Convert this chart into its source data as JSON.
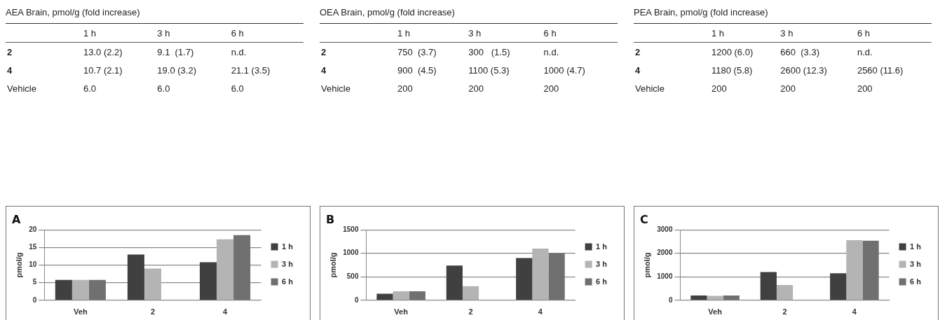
{
  "chart_data": [
    {
      "type": "other",
      "title": "AEA Brain, pmol/g (fold increase)",
      "categories": [
        "1 h",
        "3 h",
        "6 h"
      ],
      "y_categories": [
        "2",
        "4",
        "Vehicle"
      ],
      "annotations": [
        "13.0 (2.2)",
        "9.1  (1.7)",
        "n.d.",
        "10.7 (2.1)",
        "19.0 (3.2)",
        "21.1 (3.5)",
        "6.0",
        "6.0",
        "6.0"
      ]
    },
    {
      "type": "other",
      "title": "OEA Brain, pmol/g (fold increase)",
      "categories": [
        "1 h",
        "3 h",
        "6 h"
      ],
      "y_categories": [
        "2",
        "4",
        "Vehicle"
      ],
      "annotations": [
        "750  (3.7)",
        "300   (1.5)",
        "n.d.",
        "900  (4.5)",
        "1100 (5.3)",
        "1000 (4.7)",
        "200",
        "200",
        "200"
      ]
    },
    {
      "type": "other",
      "title": "PEA Brain, pmol/g (fold increase)",
      "categories": [
        "1 h",
        "3 h",
        "6 h"
      ],
      "y_categories": [
        "2",
        "4",
        "Vehicle"
      ],
      "annotations": [
        "1200 (6.0)",
        "660  (3.3)",
        "n.d.",
        "1180 (5.8)",
        "2600 (12.3)",
        "2560 (11.6)",
        "200",
        "200",
        "200"
      ]
    },
    {
      "type": "bar",
      "title": "A",
      "ylabel": "pmol/g",
      "categories": [
        "Veh",
        "2",
        "4"
      ],
      "ylim": [
        0,
        20
      ],
      "yticks": [
        0,
        5,
        10,
        15,
        20
      ],
      "grid": "y",
      "legend": "right",
      "series": [
        {
          "name": "1 h",
          "color": "#404040",
          "values": [
            5.8,
            13.0,
            10.8
          ]
        },
        {
          "name": "3 h",
          "color": "#b4b4b4",
          "values": [
            5.8,
            9.0,
            17.3
          ]
        },
        {
          "name": "6 h",
          "color": "#707070",
          "values": [
            5.8,
            null,
            18.5
          ]
        }
      ]
    },
    {
      "type": "bar",
      "title": "B",
      "ylabel": "pmol/g",
      "categories": [
        "Veh",
        "2",
        "4"
      ],
      "ylim": [
        0,
        1500
      ],
      "yticks": [
        0,
        500,
        1000,
        1500
      ],
      "grid": "y",
      "legend": "right",
      "series": [
        {
          "name": "1 h",
          "color": "#404040",
          "values": [
            140,
            740,
            900
          ]
        },
        {
          "name": "3 h",
          "color": "#b4b4b4",
          "values": [
            190,
            300,
            1100
          ]
        },
        {
          "name": "6 h",
          "color": "#707070",
          "values": [
            190,
            null,
            1000
          ]
        }
      ]
    },
    {
      "type": "bar",
      "title": "C",
      "ylabel": "pmol/g",
      "categories": [
        "Veh",
        "2",
        "4"
      ],
      "ylim": [
        0,
        3000
      ],
      "yticks": [
        0,
        1000,
        2000,
        3000
      ],
      "grid": "y",
      "legend": "right",
      "series": [
        {
          "name": "1 h",
          "color": "#404040",
          "values": [
            200,
            1200,
            1150
          ]
        },
        {
          "name": "3 h",
          "color": "#b4b4b4",
          "values": [
            190,
            650,
            2560
          ]
        },
        {
          "name": "6 h",
          "color": "#707070",
          "values": [
            200,
            null,
            2540
          ]
        }
      ]
    }
  ]
}
